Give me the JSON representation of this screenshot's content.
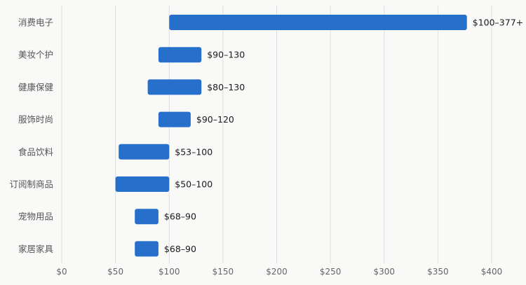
{
  "chart_data": {
    "type": "bar",
    "orientation": "horizontal-range",
    "title": "",
    "xlabel": "",
    "ylabel": "",
    "xlim": [
      0,
      400
    ],
    "grid": "vertical",
    "bar_color": "#2670cc",
    "x_ticks": [
      {
        "value": 0,
        "label": "$0"
      },
      {
        "value": 50,
        "label": "$50"
      },
      {
        "value": 100,
        "label": "$100"
      },
      {
        "value": 150,
        "label": "$150"
      },
      {
        "value": 200,
        "label": "$200"
      },
      {
        "value": 250,
        "label": "$250"
      },
      {
        "value": 300,
        "label": "$300"
      },
      {
        "value": 350,
        "label": "$350"
      },
      {
        "value": 400,
        "label": "$400"
      }
    ],
    "bars": [
      {
        "category": "消费电子",
        "low": 100,
        "high": 377,
        "label": "$100–377+"
      },
      {
        "category": "美妆个护",
        "low": 90,
        "high": 130,
        "label": "$90–130"
      },
      {
        "category": "健康保健",
        "low": 80,
        "high": 130,
        "label": "$80–130"
      },
      {
        "category": "服饰时尚",
        "low": 90,
        "high": 120,
        "label": "$90–120"
      },
      {
        "category": "食品饮料",
        "low": 53,
        "high": 100,
        "label": "$53–100"
      },
      {
        "category": "订阅制商品",
        "low": 50,
        "high": 100,
        "label": "$50–100"
      },
      {
        "category": "宠物用品",
        "low": 68,
        "high": 90,
        "label": "$68–90"
      },
      {
        "category": "家居家具",
        "low": 68,
        "high": 90,
        "label": "$68–90"
      }
    ]
  }
}
